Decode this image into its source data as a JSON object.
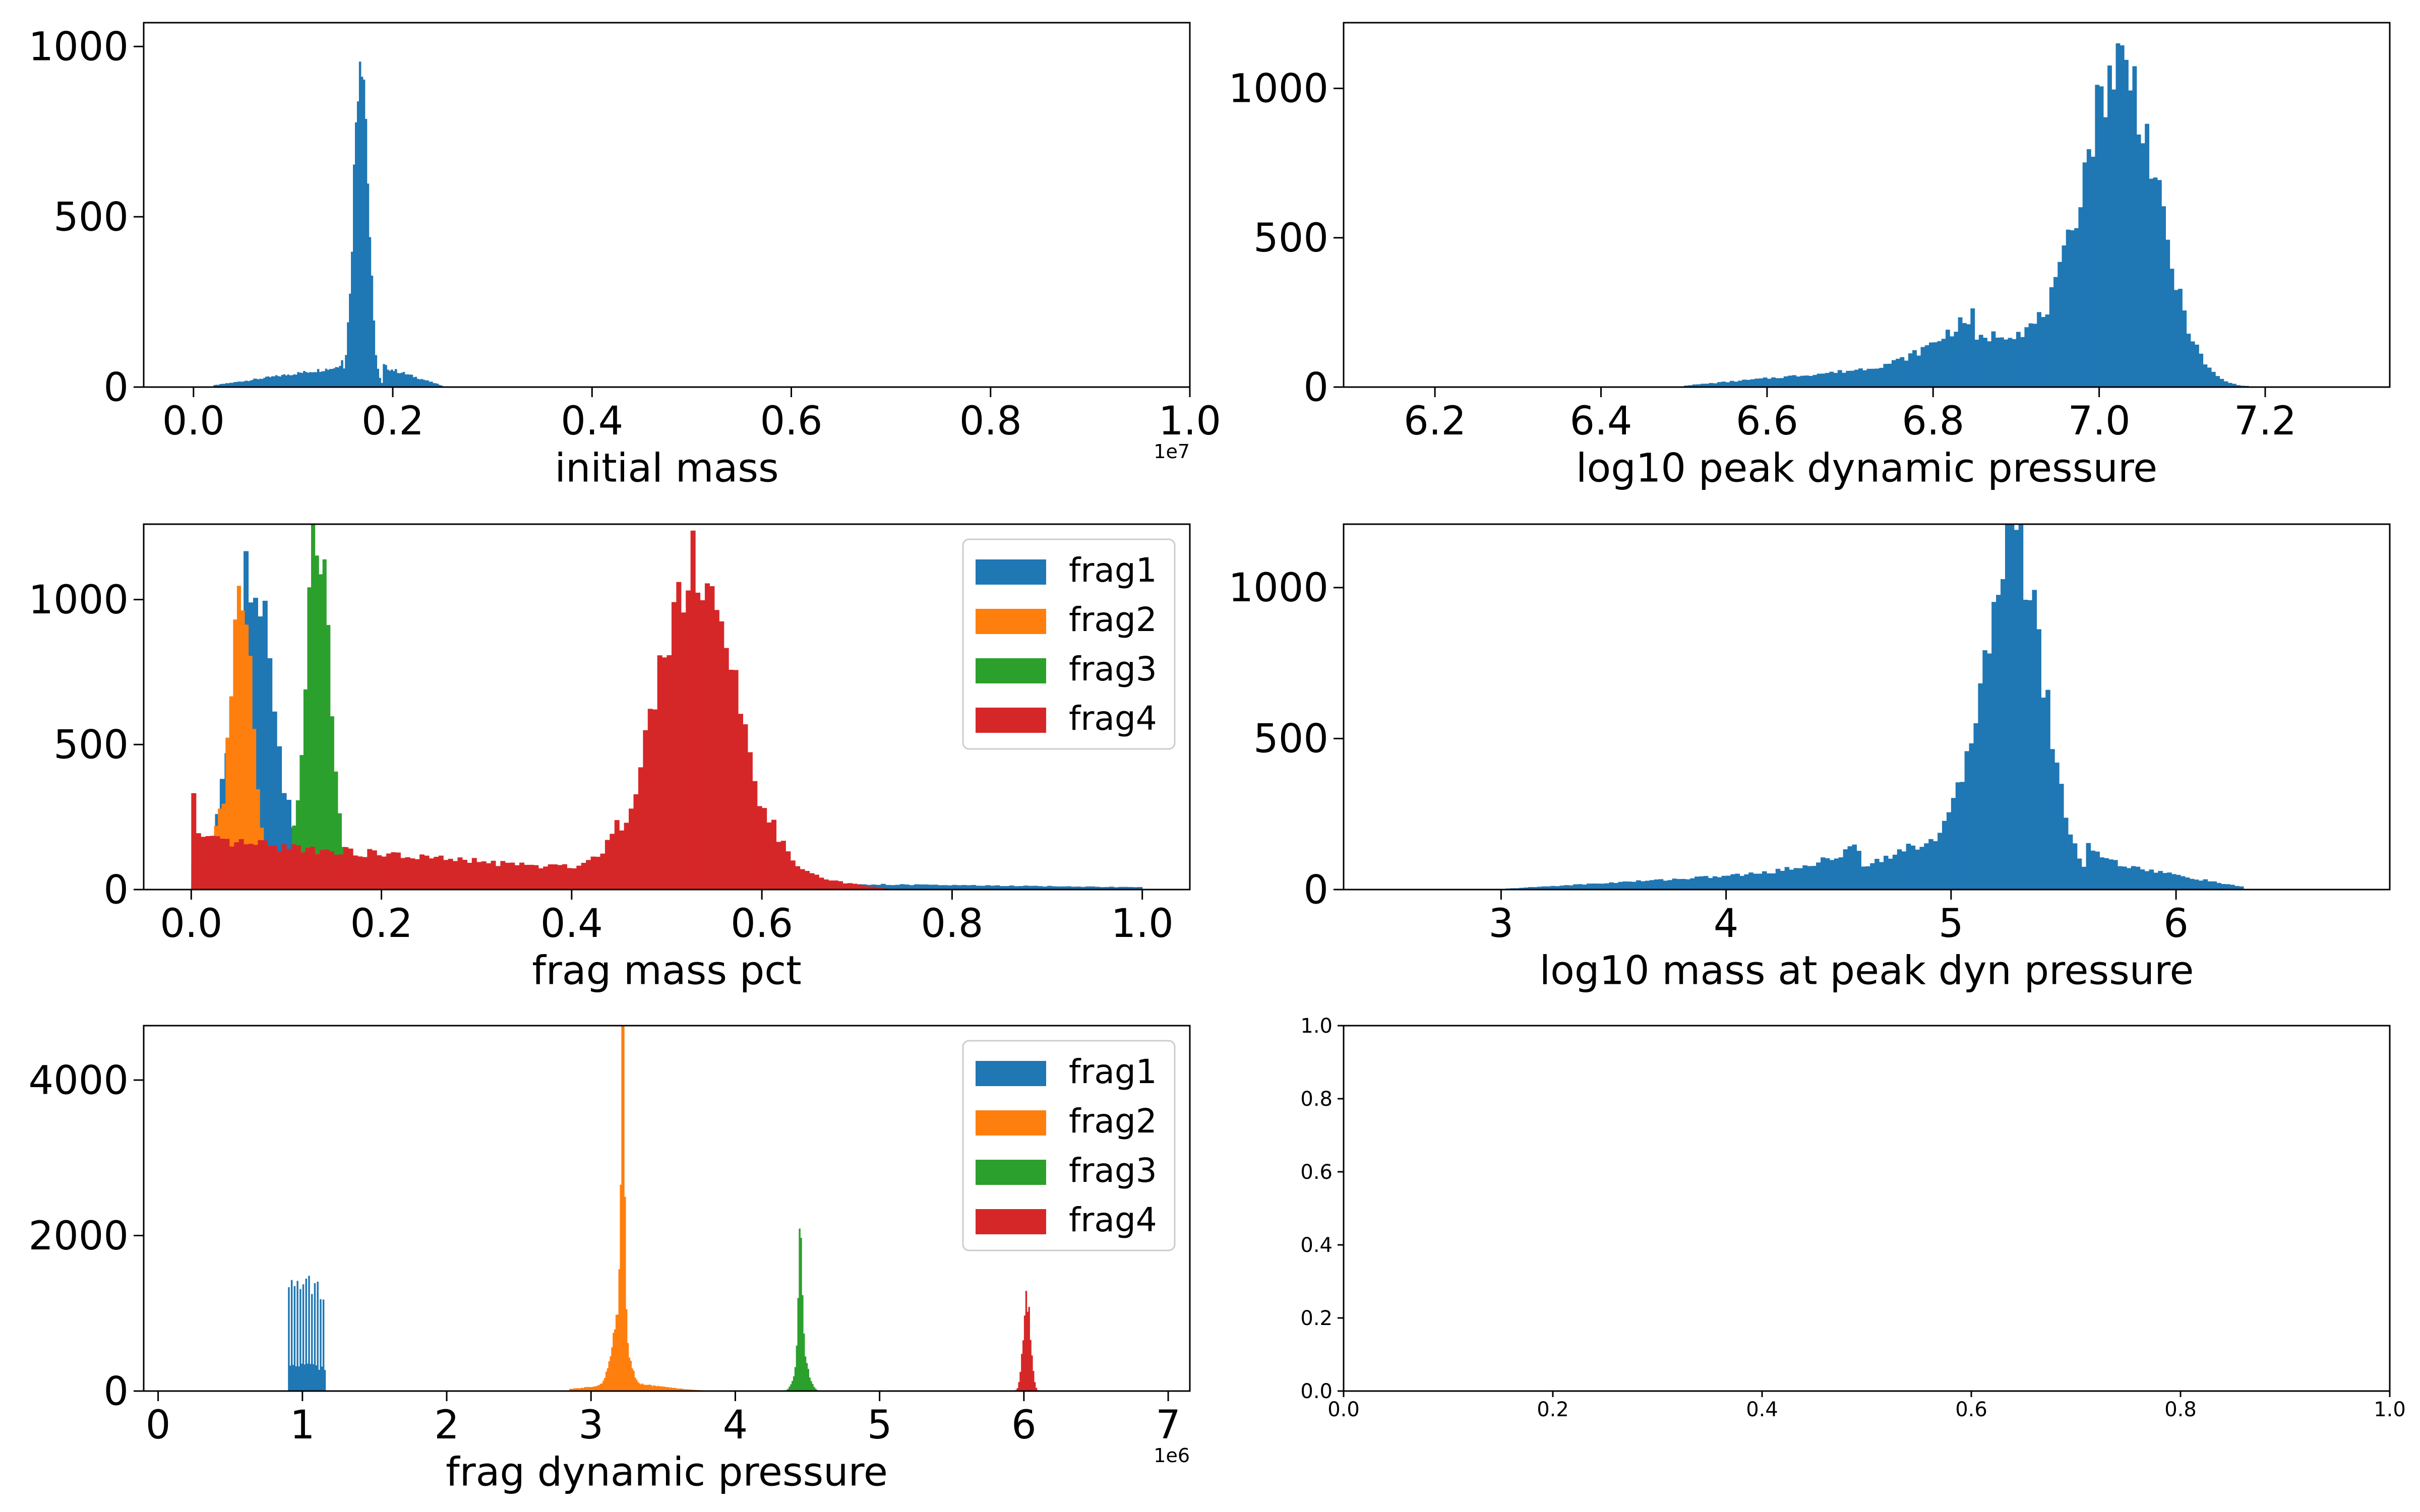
{
  "figure": {
    "title": ""
  },
  "colors": {
    "frag1": "#1f77b4",
    "frag2": "#ff7f0e",
    "frag3": "#2ca02c",
    "frag4": "#d62728",
    "axis": "#000000"
  },
  "chart_data": [
    {
      "id": "initial_mass",
      "type": "bar",
      "xlabel": "initial mass",
      "ylabel": "",
      "x_offset_label": "1e7",
      "xlim": [
        -0.05,
        1.0
      ],
      "ylim": [
        0,
        1070
      ],
      "xticks": [
        0.0,
        0.2,
        0.4,
        0.6,
        0.8,
        1.0
      ],
      "xtick_labels": [
        "0.0",
        "0.2",
        "0.4",
        "0.6",
        "0.8",
        "1.0"
      ],
      "yticks": [
        0,
        500,
        1000
      ],
      "ytick_labels": [
        "0",
        "500",
        "1000"
      ],
      "legend": [],
      "series": [
        {
          "name": "",
          "color_key": "frag1",
          "bins": {
            "start": 0.0,
            "end": 0.26,
            "step": 0.002
          },
          "peaks": [
            {
              "mu": 0.168,
              "sigma": 0.007,
              "amp": 1020
            }
          ],
          "tails": [
            {
              "from": 0.02,
              "to": 0.15,
              "y": [
                5,
                60
              ]
            },
            {
              "from": 0.19,
              "to": 0.25,
              "y": [
                60,
                4
              ]
            }
          ]
        }
      ]
    },
    {
      "id": "log10_peak_dynamic_pressure",
      "type": "bar",
      "xlabel": "log10 peak dynamic pressure",
      "ylabel": "",
      "x_offset_label": "",
      "xlim": [
        6.09,
        7.35
      ],
      "ylim": [
        0,
        1220
      ],
      "xticks": [
        6.2,
        6.4,
        6.6,
        6.8,
        7.0,
        7.2
      ],
      "xtick_labels": [
        "6.2",
        "6.4",
        "6.6",
        "6.8",
        "7.0",
        "7.2"
      ],
      "yticks": [
        0,
        500,
        1000
      ],
      "ytick_labels": [
        "0",
        "500",
        "1000"
      ],
      "legend": [],
      "series": [
        {
          "name": "",
          "color_key": "frag1",
          "bins": {
            "start": 6.5,
            "end": 7.26,
            "step": 0.005
          },
          "peaks": [
            {
              "mu": 7.025,
              "sigma": 0.045,
              "amp": 1080
            },
            {
              "mu": 6.88,
              "sigma": 0.06,
              "amp": 170
            }
          ],
          "tails": [
            {
              "from": 6.5,
              "to": 6.85,
              "y": [
                5,
                90
              ]
            }
          ]
        }
      ]
    },
    {
      "id": "frag_mass_pct",
      "type": "bar",
      "xlabel": "frag mass pct",
      "ylabel": "",
      "x_offset_label": "",
      "xlim": [
        -0.05,
        1.05
      ],
      "ylim": [
        0,
        1260
      ],
      "xticks": [
        0.0,
        0.2,
        0.4,
        0.6,
        0.8,
        1.0
      ],
      "xtick_labels": [
        "0.0",
        "0.2",
        "0.4",
        "0.6",
        "0.8",
        "1.0"
      ],
      "yticks": [
        0,
        500,
        1000
      ],
      "ytick_labels": [
        "0",
        "500",
        "1000"
      ],
      "legend": [
        "frag1",
        "frag2",
        "frag3",
        "frag4"
      ],
      "series": [
        {
          "name": "frag1",
          "color_key": "frag1",
          "bins": {
            "start": 0.0,
            "end": 1.0,
            "step": 0.005
          },
          "peaks": [
            {
              "mu": 0.065,
              "sigma": 0.022,
              "amp": 1120
            }
          ],
          "tails": [
            {
              "from": 0.1,
              "to": 1.0,
              "y": [
                40,
                8
              ]
            }
          ]
        },
        {
          "name": "frag2",
          "color_key": "frag2",
          "bins": {
            "start": 0.0,
            "end": 0.12,
            "step": 0.004
          },
          "peaks": [
            {
              "mu": 0.052,
              "sigma": 0.012,
              "amp": 1030
            }
          ],
          "tails": [
            {
              "from": 0.0,
              "to": 0.03,
              "y": [
                80,
                120
              ]
            }
          ]
        },
        {
          "name": "frag3",
          "color_key": "frag3",
          "bins": {
            "start": 0.07,
            "end": 0.22,
            "step": 0.004
          },
          "peaks": [
            {
              "mu": 0.133,
              "sigma": 0.012,
              "amp": 1170
            }
          ],
          "tails": [
            {
              "from": 0.07,
              "to": 0.2,
              "y": [
                70,
                60
              ]
            }
          ]
        },
        {
          "name": "frag4",
          "color_key": "frag4",
          "bins": {
            "start": 0.0,
            "end": 0.74,
            "step": 0.005
          },
          "peaks": [
            {
              "mu": 0.53,
              "sigma": 0.042,
              "amp": 1130
            },
            {
              "mu": 0.0,
              "sigma": 0.003,
              "amp": 450
            }
          ],
          "tails": [
            {
              "from": 0.005,
              "to": 0.45,
              "y": [
                170,
                60
              ]
            },
            {
              "from": 0.6,
              "to": 0.73,
              "y": [
                60,
                4
              ]
            }
          ]
        }
      ]
    },
    {
      "id": "log10_mass_at_peak_dyn_pressure",
      "type": "bar",
      "xlabel": "log10 mass at peak dyn pressure",
      "ylabel": "",
      "x_offset_label": "",
      "xlim": [
        2.3,
        6.95
      ],
      "ylim": [
        0,
        1210
      ],
      "xticks": [
        3,
        4,
        5,
        6
      ],
      "xtick_labels": [
        "3",
        "4",
        "5",
        "6"
      ],
      "yticks": [
        0,
        500,
        1000
      ],
      "ytick_labels": [
        "0",
        "500",
        "1000"
      ],
      "legend": [],
      "series": [
        {
          "name": "",
          "color_key": "frag1",
          "bins": {
            "start": 3.0,
            "end": 6.4,
            "step": 0.02
          },
          "peaks": [
            {
              "mu": 5.28,
              "sigma": 0.13,
              "amp": 1100
            },
            {
              "mu": 4.95,
              "sigma": 0.3,
              "amp": 150
            }
          ],
          "tails": [
            {
              "from": 3.0,
              "to": 4.6,
              "y": [
                2,
                70
              ]
            },
            {
              "from": 5.6,
              "to": 6.3,
              "y": [
                100,
                8
              ]
            }
          ]
        }
      ]
    },
    {
      "id": "frag_dynamic_pressure",
      "type": "bar",
      "xlabel": "frag dynamic pressure",
      "ylabel": "",
      "x_offset_label": "1e6",
      "xlim": [
        -0.1,
        7.15
      ],
      "ylim": [
        0,
        4700
      ],
      "xticks": [
        0,
        1,
        2,
        3,
        4,
        5,
        6,
        7
      ],
      "xtick_labels": [
        "0",
        "1",
        "2",
        "3",
        "4",
        "5",
        "6",
        "7"
      ],
      "yticks": [
        0,
        2000,
        4000
      ],
      "ytick_labels": [
        "0",
        "2000",
        "4000"
      ],
      "legend": [
        "frag1",
        "frag2",
        "frag3",
        "frag4"
      ],
      "series": [
        {
          "name": "frag1",
          "color_key": "frag1",
          "bins": {
            "start": 0.9,
            "end": 1.16,
            "step": 0.01
          },
          "peaks": [
            {
              "mu": 1.0,
              "sigma": 0.25,
              "amp": 1380
            }
          ],
          "striped": true,
          "tails": []
        },
        {
          "name": "frag2",
          "color_key": "frag2",
          "bins": {
            "start": 2.85,
            "end": 3.8,
            "step": 0.01
          },
          "peaks": [
            {
              "mu": 3.22,
              "sigma": 0.012,
              "amp": 4400
            },
            {
              "mu": 3.2,
              "sigma": 0.05,
              "amp": 900
            },
            {
              "mu": 3.25,
              "sigma": 0.25,
              "amp": 90
            }
          ],
          "tails": []
        },
        {
          "name": "frag3",
          "color_key": "frag3",
          "bins": {
            "start": 4.3,
            "end": 4.62,
            "step": 0.01
          },
          "peaks": [
            {
              "mu": 4.45,
              "sigma": 0.012,
              "amp": 1750
            },
            {
              "mu": 4.46,
              "sigma": 0.04,
              "amp": 500
            }
          ],
          "tails": []
        },
        {
          "name": "frag4",
          "color_key": "frag4",
          "bins": {
            "start": 5.85,
            "end": 6.2,
            "step": 0.01
          },
          "peaks": [
            {
              "mu": 6.02,
              "sigma": 0.025,
              "amp": 1180
            }
          ],
          "tails": []
        }
      ]
    },
    {
      "id": "empty_axes",
      "type": "bar",
      "xlabel": "",
      "ylabel": "",
      "x_offset_label": "",
      "xlim": [
        0.0,
        1.0
      ],
      "ylim": [
        0.0,
        1.0
      ],
      "xticks": [
        0.0,
        0.2,
        0.4,
        0.6,
        0.8,
        1.0
      ],
      "xtick_labels": [
        "0.0",
        "0.2",
        "0.4",
        "0.6",
        "0.8",
        "1.0"
      ],
      "yticks": [
        0.0,
        0.2,
        0.4,
        0.6,
        0.8,
        1.0
      ],
      "ytick_labels": [
        "0.0",
        "0.2",
        "0.4",
        "0.6",
        "0.8",
        "1.0"
      ],
      "legend": [],
      "series": []
    }
  ]
}
